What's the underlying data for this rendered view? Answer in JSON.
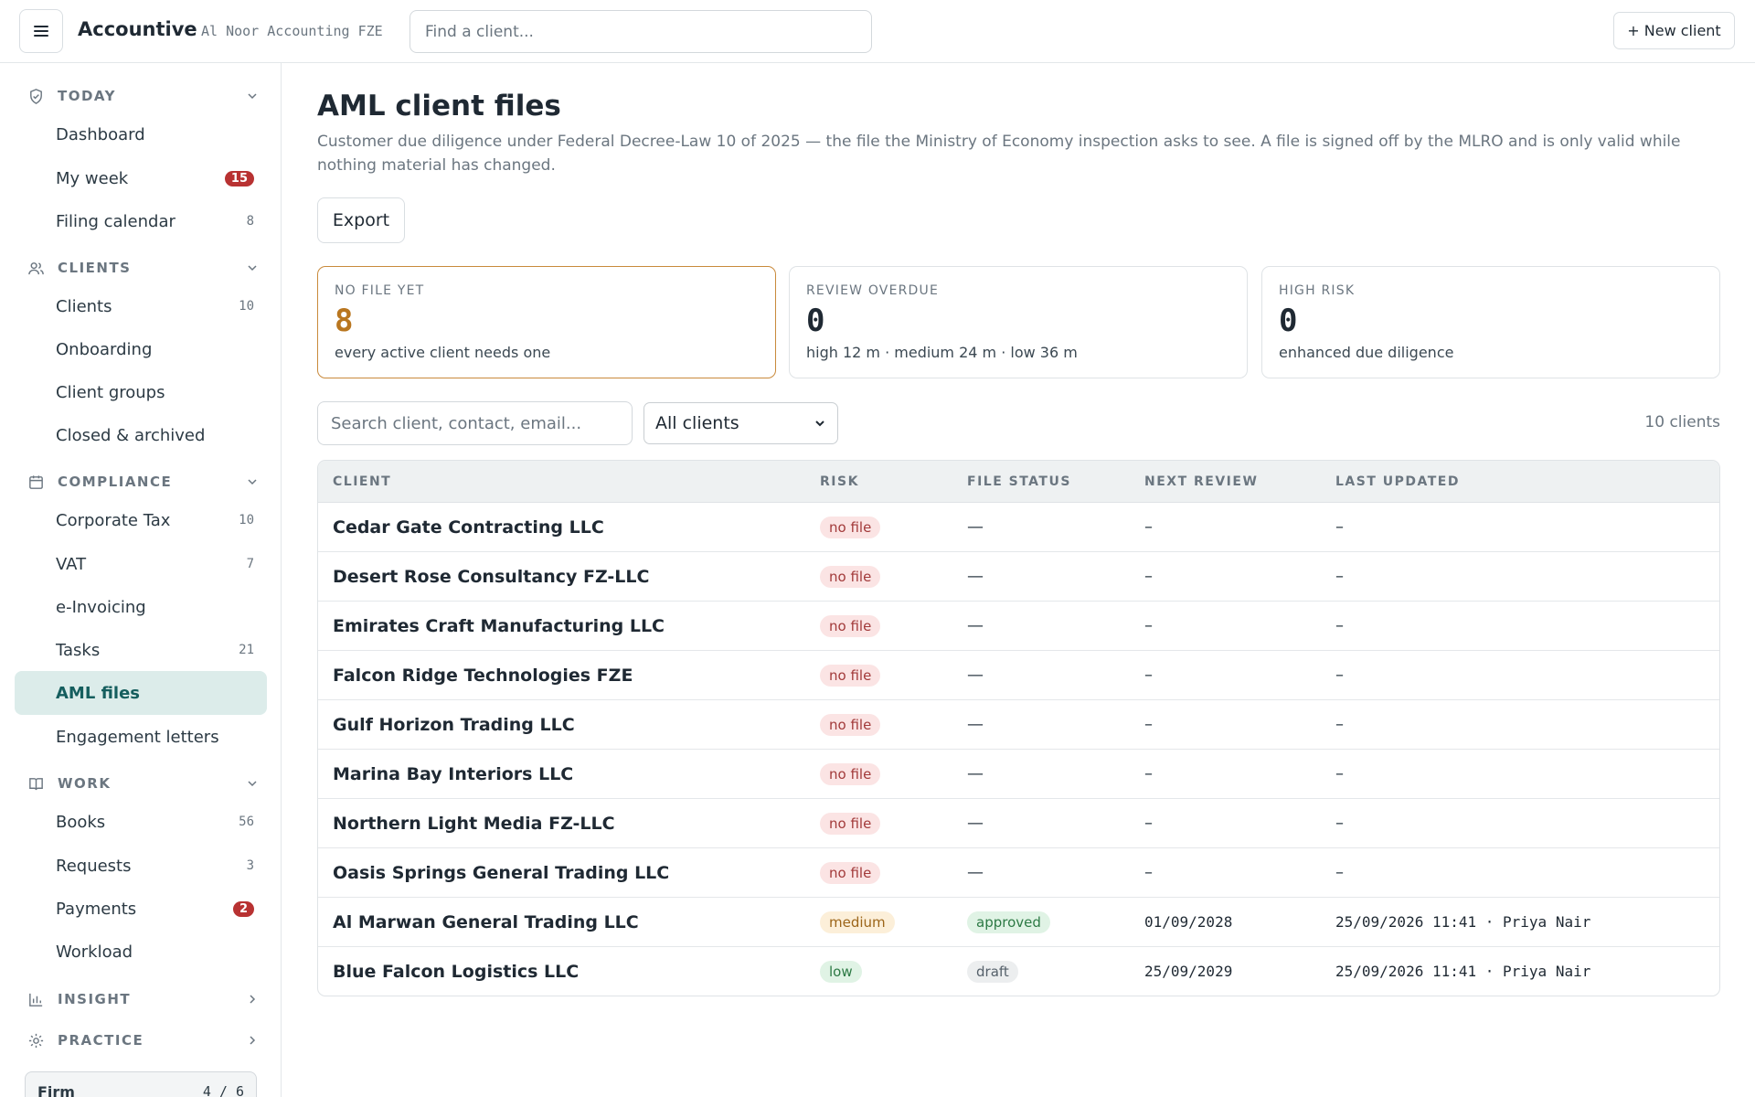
{
  "header": {
    "brand": "Accountive",
    "firm": "Al Noor Accounting FZE",
    "search_placeholder": "Find a client...",
    "new_client_label": "+ New client"
  },
  "sidebar": {
    "sections": [
      {
        "label": "TODAY",
        "icon": "shield-check-icon",
        "expanded": true
      },
      {
        "label": "CLIENTS",
        "icon": "users-icon",
        "expanded": true
      },
      {
        "label": "COMPLIANCE",
        "icon": "calendar-icon",
        "expanded": true
      },
      {
        "label": "WORK",
        "icon": "book-open-icon",
        "expanded": true
      },
      {
        "label": "INSIGHT",
        "icon": "bar-chart-icon",
        "expanded": false
      },
      {
        "label": "PRACTICE",
        "icon": "gear-icon",
        "expanded": false
      }
    ],
    "items": [
      {
        "label": "Dashboard",
        "count": ""
      },
      {
        "label": "My week",
        "badge": "15"
      },
      {
        "label": "Filing calendar",
        "count": "8"
      },
      {
        "label": "Clients",
        "count": "10"
      },
      {
        "label": "Onboarding",
        "count": ""
      },
      {
        "label": "Client groups",
        "count": ""
      },
      {
        "label": "Closed & archived",
        "count": ""
      },
      {
        "label": "Corporate Tax",
        "count": "10"
      },
      {
        "label": "VAT",
        "count": "7"
      },
      {
        "label": "e-Invoicing",
        "count": ""
      },
      {
        "label": "Tasks",
        "count": "21"
      },
      {
        "label": "AML files",
        "count": "",
        "active": true
      },
      {
        "label": "Engagement letters",
        "count": ""
      },
      {
        "label": "Books",
        "count": "56"
      },
      {
        "label": "Requests",
        "count": "3"
      },
      {
        "label": "Payments",
        "badge": "2"
      },
      {
        "label": "Workload",
        "count": ""
      }
    ],
    "firm_box": {
      "label": "Firm",
      "value": "4 / 6"
    }
  },
  "main": {
    "title": "AML client files",
    "description": "Customer due diligence under Federal Decree-Law 10 of 2025 — the file the Ministry of Economy inspection asks to see. A file is signed off by the MLRO and is only valid while nothing material has changed.",
    "export_label": "Export",
    "cards": [
      {
        "label": "NO FILE YET",
        "value": "8",
        "sub": "every active client needs one"
      },
      {
        "label": "REVIEW OVERDUE",
        "value": "0",
        "sub": "high 12 m · medium 24 m · low 36 m"
      },
      {
        "label": "HIGH RISK",
        "value": "0",
        "sub": "enhanced due diligence"
      }
    ],
    "filter_placeholder": "Search client, contact, email...",
    "filter_select": "All clients",
    "client_count": "10 clients",
    "columns": [
      "CLIENT",
      "RISK",
      "FILE STATUS",
      "NEXT REVIEW",
      "LAST UPDATED"
    ],
    "rows": [
      {
        "client": "Cedar Gate Contracting LLC",
        "risk": "no file",
        "status": "—",
        "next": "–",
        "updated": "–"
      },
      {
        "client": "Desert Rose Consultancy FZ-LLC",
        "risk": "no file",
        "status": "—",
        "next": "–",
        "updated": "–"
      },
      {
        "client": "Emirates Craft Manufacturing LLC",
        "risk": "no file",
        "status": "—",
        "next": "–",
        "updated": "–"
      },
      {
        "client": "Falcon Ridge Technologies FZE",
        "risk": "no file",
        "status": "—",
        "next": "–",
        "updated": "–"
      },
      {
        "client": "Gulf Horizon Trading LLC",
        "risk": "no file",
        "status": "—",
        "next": "–",
        "updated": "–"
      },
      {
        "client": "Marina Bay Interiors LLC",
        "risk": "no file",
        "status": "—",
        "next": "–",
        "updated": "–"
      },
      {
        "client": "Northern Light Media FZ-LLC",
        "risk": "no file",
        "status": "—",
        "next": "–",
        "updated": "–"
      },
      {
        "client": "Oasis Springs General Trading LLC",
        "risk": "no file",
        "status": "—",
        "next": "–",
        "updated": "–"
      },
      {
        "client": "Al Marwan General Trading LLC",
        "risk": "medium",
        "status": "approved",
        "next": "01/09/2028",
        "updated": "25/09/2026 11:41 · Priya Nair"
      },
      {
        "client": "Blue Falcon Logistics LLC",
        "risk": "low",
        "status": "draft",
        "next": "25/09/2029",
        "updated": "25/09/2026 11:41 · Priya Nair"
      }
    ]
  },
  "colors": {
    "accent": "#155e5e",
    "active_bg": "#dcecea",
    "warning": "#b9761f",
    "badge": "#b83232"
  }
}
